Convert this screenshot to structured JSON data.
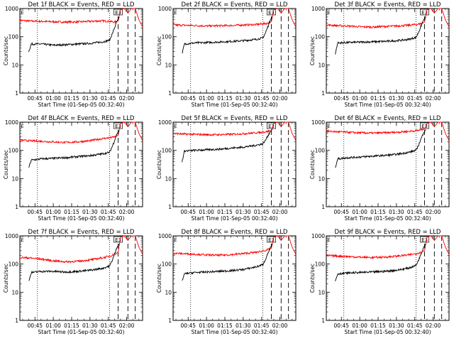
{
  "figure": {
    "ylabel": "Counts/sec",
    "xlabel": "Start Time (01-Sep-05 00:32:40)"
  },
  "chart_data": {
    "type": "line",
    "yscale": "log",
    "ylim": [
      1,
      1000
    ],
    "yticks": [
      "1",
      "10",
      "100",
      "1000"
    ],
    "xticks": [
      "00:45",
      "01:00",
      "01:15",
      "01:30",
      "01:45",
      "02:00"
    ],
    "xtick_minutes": [
      45,
      60,
      75,
      90,
      105,
      120
    ],
    "xlim_minutes": [
      32.67,
      133
    ],
    "dotted_lines_minutes": [
      47,
      106
    ],
    "dashed_lines_minutes": [
      113,
      121,
      127
    ],
    "marker_text": "E3",
    "legend_colors": {
      "events": "#000000",
      "lld": "#ff0000"
    },
    "panels": [
      {
        "title": "Det 1f BLACK = Events, RED = LLD",
        "series": [
          {
            "color": "#ff0000",
            "x": [
              32.7,
              40,
              50,
              60,
              70,
              80,
              90,
              100,
              106,
              110,
              113,
              115,
              118,
              121,
              124,
              127,
              130,
              133
            ],
            "y": [
              380,
              360,
              350,
              340,
              330,
              335,
              350,
              365,
              350,
              330,
              360,
              900,
              1000,
              700,
              1000,
              1000,
              400,
              220
            ]
          },
          {
            "color": "#000000",
            "x": [
              40,
              42,
              50,
              60,
              70,
              80,
              90,
              100,
              106,
              108,
              110,
              112,
              114
            ],
            "y": [
              30,
              55,
              55,
              50,
              52,
              55,
              58,
              65,
              75,
              120,
              200,
              350,
              500
            ]
          }
        ]
      },
      {
        "title": "Det 2f BLACK = Events, RED = LLD",
        "series": [
          {
            "color": "#ff0000",
            "x": [
              32.7,
              40,
              50,
              60,
              70,
              80,
              90,
              100,
              106,
              110,
              113,
              115,
              118,
              121,
              124,
              127,
              130,
              133
            ],
            "y": [
              260,
              255,
              250,
              240,
              245,
              250,
              260,
              270,
              285,
              300,
              340,
              900,
              1000,
              700,
              1000,
              1000,
              400,
              220
            ]
          },
          {
            "color": "#000000",
            "x": [
              40,
              42,
              50,
              60,
              70,
              80,
              90,
              100,
              106,
              108,
              110,
              112,
              114
            ],
            "y": [
              25,
              55,
              60,
              62,
              65,
              68,
              72,
              80,
              90,
              130,
              220,
              380,
              520
            ]
          }
        ]
      },
      {
        "title": "Det 3f BLACK = Events, RED = LLD",
        "series": [
          {
            "color": "#ff0000",
            "x": [
              32.7,
              40,
              50,
              60,
              70,
              80,
              90,
              100,
              106,
              110,
              113,
              115,
              118,
              121,
              124,
              127,
              130,
              133
            ],
            "y": [
              260,
              250,
              240,
              225,
              220,
              230,
              240,
              255,
              270,
              290,
              330,
              900,
              1000,
              700,
              1000,
              1000,
              400,
              220
            ]
          },
          {
            "color": "#000000",
            "x": [
              40,
              42,
              50,
              60,
              70,
              80,
              90,
              100,
              106,
              108,
              110,
              112,
              114
            ],
            "y": [
              25,
              60,
              62,
              64,
              66,
              68,
              72,
              80,
              95,
              140,
              230,
              380,
              520
            ]
          }
        ]
      },
      {
        "title": "Det 4f BLACK = Events, RED = LLD",
        "series": [
          {
            "color": "#ff0000",
            "x": [
              32.7,
              40,
              50,
              60,
              70,
              80,
              90,
              100,
              106,
              110,
              113,
              115,
              118,
              121,
              124,
              127,
              130,
              133
            ],
            "y": [
              230,
              220,
              210,
              200,
              190,
              200,
              220,
              260,
              280,
              300,
              340,
              900,
              1000,
              700,
              1000,
              1000,
              400,
              220
            ]
          },
          {
            "color": "#000000",
            "x": [
              40,
              42,
              50,
              60,
              70,
              80,
              90,
              100,
              106,
              108,
              110,
              112,
              114
            ],
            "y": [
              25,
              45,
              50,
              52,
              55,
              60,
              65,
              75,
              85,
              130,
              220,
              380,
              520
            ]
          }
        ]
      },
      {
        "title": "Det 5f BLACK = Events, RED = LLD",
        "series": [
          {
            "color": "#ff0000",
            "x": [
              32.7,
              40,
              50,
              60,
              70,
              80,
              90,
              100,
              106,
              110,
              113,
              115,
              118,
              121,
              124,
              127,
              130,
              133
            ],
            "y": [
              400,
              380,
              370,
              360,
              360,
              370,
              390,
              420,
              440,
              470,
              500,
              900,
              1000,
              700,
              1000,
              1000,
              400,
              220
            ]
          },
          {
            "color": "#000000",
            "x": [
              40,
              42,
              50,
              60,
              70,
              80,
              90,
              100,
              106,
              108,
              110,
              112,
              114
            ],
            "y": [
              40,
              95,
              100,
              105,
              110,
              120,
              130,
              150,
              170,
              220,
              320,
              450,
              600
            ]
          }
        ]
      },
      {
        "title": "Det 6f BLACK = Events, RED = LLD",
        "series": [
          {
            "color": "#ff0000",
            "x": [
              32.7,
              40,
              50,
              60,
              70,
              80,
              90,
              100,
              106,
              110,
              113,
              115,
              118,
              121,
              124,
              127,
              130,
              133
            ],
            "y": [
              480,
              460,
              440,
              420,
              410,
              420,
              440,
              470,
              500,
              530,
              560,
              900,
              1000,
              700,
              1000,
              1000,
              400,
              220
            ]
          },
          {
            "color": "#000000",
            "x": [
              40,
              42,
              50,
              60,
              70,
              80,
              90,
              100,
              106,
              108,
              110,
              112,
              114
            ],
            "y": [
              25,
              50,
              55,
              58,
              62,
              66,
              72,
              85,
              100,
              150,
              250,
              400,
              550
            ]
          }
        ]
      },
      {
        "title": "Det 7f BLACK = Events, RED = LLD",
        "series": [
          {
            "color": "#ff0000",
            "x": [
              32.7,
              40,
              50,
              60,
              70,
              80,
              90,
              100,
              106,
              110,
              113,
              115,
              118,
              121,
              124,
              127,
              130,
              133
            ],
            "y": [
              170,
              165,
              150,
              130,
              120,
              125,
              140,
              165,
              190,
              220,
              260,
              900,
              1000,
              700,
              1000,
              1000,
              400,
              220
            ]
          },
          {
            "color": "#000000",
            "x": [
              40,
              42,
              50,
              60,
              70,
              80,
              90,
              100,
              106,
              108,
              110,
              112,
              114
            ],
            "y": [
              25,
              50,
              55,
              55,
              52,
              55,
              60,
              70,
              85,
              130,
              220,
              380,
              520
            ]
          }
        ]
      },
      {
        "title": "Det 8f BLACK = Events, RED = LLD",
        "series": [
          {
            "color": "#ff0000",
            "x": [
              32.7,
              40,
              50,
              60,
              70,
              80,
              90,
              100,
              106,
              110,
              113,
              115,
              118,
              121,
              124,
              127,
              130,
              133
            ],
            "y": [
              240,
              235,
              225,
              210,
              205,
              215,
              235,
              260,
              290,
              320,
              360,
              900,
              1000,
              700,
              1000,
              1000,
              400,
              220
            ]
          },
          {
            "color": "#000000",
            "x": [
              40,
              42,
              50,
              60,
              70,
              80,
              90,
              100,
              106,
              108,
              110,
              112,
              114
            ],
            "y": [
              25,
              45,
              50,
              52,
              55,
              58,
              64,
              78,
              95,
              140,
              230,
              380,
              520
            ]
          }
        ]
      },
      {
        "title": "Det 9f BLACK = Events, RED = LLD",
        "series": [
          {
            "color": "#ff0000",
            "x": [
              32.7,
              40,
              50,
              60,
              70,
              80,
              90,
              100,
              106,
              110,
              113,
              115,
              118,
              121,
              124,
              127,
              130,
              133
            ],
            "y": [
              200,
              195,
              185,
              175,
              170,
              175,
              190,
              210,
              235,
              260,
              300,
              900,
              1000,
              700,
              1000,
              1000,
              400,
              220
            ]
          },
          {
            "color": "#000000",
            "x": [
              40,
              42,
              50,
              60,
              70,
              80,
              90,
              100,
              106,
              108,
              110,
              112,
              114
            ],
            "y": [
              25,
              45,
              48,
              50,
              52,
              55,
              60,
              72,
              90,
              135,
              220,
              380,
              520
            ]
          }
        ]
      }
    ]
  }
}
